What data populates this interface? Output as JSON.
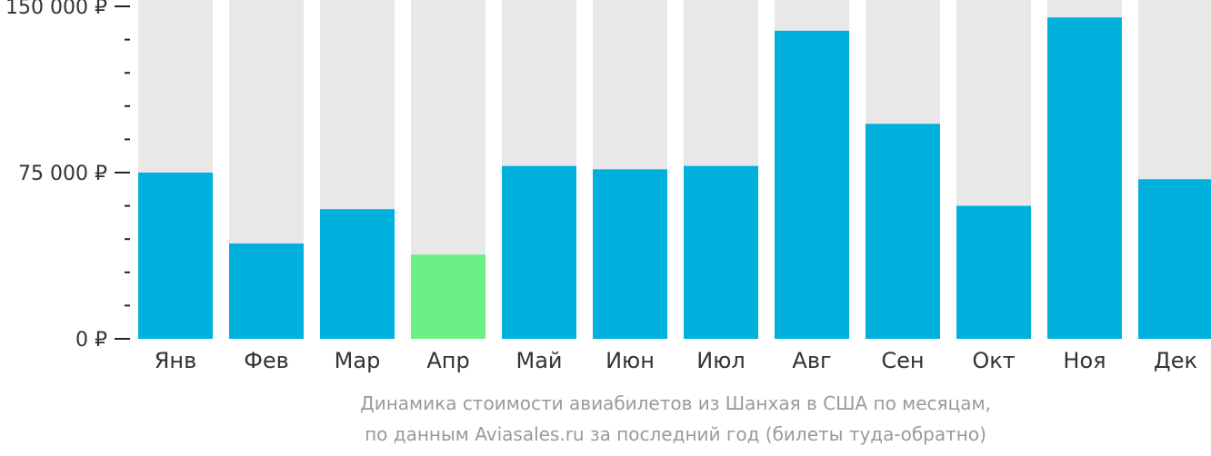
{
  "chart_data": {
    "type": "bar",
    "categories": [
      "Янв",
      "Фев",
      "Мар",
      "Апр",
      "Май",
      "Июн",
      "Июл",
      "Авг",
      "Сен",
      "Окт",
      "Ноя",
      "Дек"
    ],
    "values": [
      75000,
      43000,
      58500,
      38000,
      78000,
      76500,
      78000,
      139000,
      97000,
      60000,
      145000,
      72000
    ],
    "ylim": [
      0,
      150000
    ],
    "y_ticks": [
      {
        "value": 0,
        "label": "0 ₽"
      },
      {
        "value": 75000,
        "label": "75 000 ₽"
      },
      {
        "value": 150000,
        "label": "150 000 ₽"
      }
    ],
    "y_minor_step": 15000,
    "highlight_index": 3,
    "colors": {
      "bar": "#00b0dd",
      "highlight": "#6cf085",
      "background_bar": "#e8e8e8",
      "axis": "#222222"
    },
    "caption_line_1": "Динамика стоимости авиабилетов из Шанхая в США по месяцам,",
    "caption_line_2": "по данным Aviasales.ru за последний год (билеты туда-обратно)"
  }
}
